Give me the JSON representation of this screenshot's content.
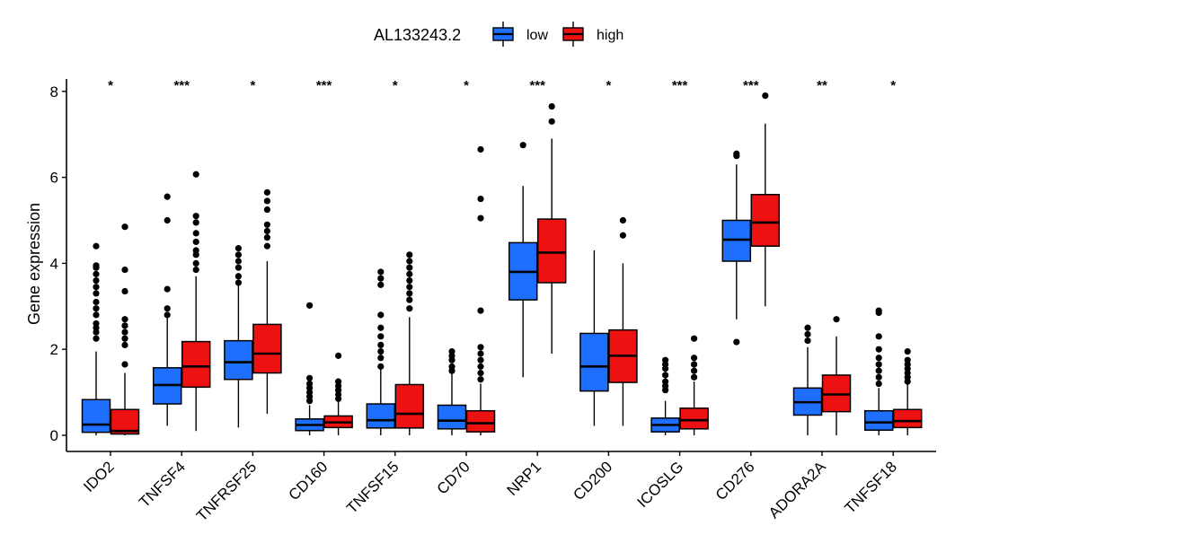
{
  "chart_data": {
    "type": "box",
    "title": "",
    "xlabel": "",
    "ylabel": "Gene expression",
    "ylim": [
      -0.35,
      8.3
    ],
    "yticks": [
      0,
      2,
      4,
      6,
      8
    ],
    "grid": false,
    "legend": {
      "title": "AL133243.2",
      "position": "top",
      "entries": [
        "low",
        "high"
      ]
    },
    "colors": {
      "low": "#1f6fff",
      "high": "#ee1111"
    },
    "categories": [
      "IDO2",
      "TNFSF4",
      "TNFRSF25",
      "CD160",
      "TNFSF15",
      "CD70",
      "NRP1",
      "CD200",
      "ICOSLG",
      "CD276",
      "ADORA2A",
      "TNFSF18"
    ],
    "significance": [
      "*",
      "***",
      "*",
      "***",
      "*",
      "*",
      "***",
      "*",
      "***",
      "***",
      "**",
      "*"
    ],
    "series": [
      {
        "name": "low",
        "boxes": [
          {
            "whisker_low": 0.0,
            "q1": 0.07,
            "median": 0.25,
            "q3": 0.83,
            "whisker_high": 1.95,
            "outliers": [
              2.25,
              2.4,
              2.5,
              2.6,
              2.8,
              2.95,
              3.1,
              3.3,
              3.45,
              3.6,
              3.75,
              3.9,
              3.95,
              4.4
            ]
          },
          {
            "whisker_low": 0.22,
            "q1": 0.73,
            "median": 1.17,
            "q3": 1.57,
            "whisker_high": 2.75,
            "outliers": [
              2.8,
              2.95,
              3.4,
              5.0,
              5.55
            ]
          },
          {
            "whisker_low": 0.18,
            "q1": 1.3,
            "median": 1.7,
            "q3": 2.2,
            "whisker_high": 3.5,
            "outliers": [
              3.55,
              3.7,
              3.9,
              4.05,
              4.2,
              4.35
            ]
          },
          {
            "whisker_low": 0.0,
            "q1": 0.11,
            "median": 0.24,
            "q3": 0.38,
            "whisker_high": 0.7,
            "outliers": [
              0.8,
              0.9,
              1.0,
              1.1,
              1.2,
              1.33,
              3.02
            ]
          },
          {
            "whisker_low": 0.0,
            "q1": 0.17,
            "median": 0.35,
            "q3": 0.73,
            "whisker_high": 1.55,
            "outliers": [
              1.6,
              1.8,
              1.95,
              2.1,
              2.3,
              2.5,
              2.8,
              3.5,
              3.65,
              3.8
            ]
          },
          {
            "whisker_low": 0.0,
            "q1": 0.15,
            "median": 0.34,
            "q3": 0.7,
            "whisker_high": 1.45,
            "outliers": [
              1.5,
              1.6,
              1.75,
              1.85,
              1.95
            ]
          },
          {
            "whisker_low": 1.35,
            "q1": 3.15,
            "median": 3.8,
            "q3": 4.48,
            "whisker_high": 5.8,
            "outliers": [
              6.75
            ]
          },
          {
            "whisker_low": 0.22,
            "q1": 1.03,
            "median": 1.6,
            "q3": 2.37,
            "whisker_high": 4.3,
            "outliers": []
          },
          {
            "whisker_low": 0.0,
            "q1": 0.08,
            "median": 0.24,
            "q3": 0.4,
            "whisker_high": 0.8,
            "outliers": [
              1.05,
              1.15,
              1.25,
              1.4,
              1.55,
              1.65,
              1.75
            ]
          },
          {
            "whisker_low": 2.7,
            "q1": 4.05,
            "median": 4.55,
            "q3": 5.0,
            "whisker_high": 6.3,
            "outliers": [
              2.17,
              6.5,
              6.55
            ]
          },
          {
            "whisker_low": 0.0,
            "q1": 0.47,
            "median": 0.77,
            "q3": 1.1,
            "whisker_high": 2.05,
            "outliers": [
              2.2,
              2.35,
              2.5
            ]
          },
          {
            "whisker_low": 0.0,
            "q1": 0.12,
            "median": 0.3,
            "q3": 0.57,
            "whisker_high": 1.1,
            "outliers": [
              1.2,
              1.35,
              1.5,
              1.65,
              1.8,
              2.0,
              2.3,
              2.85,
              2.9
            ]
          }
        ]
      },
      {
        "name": "high",
        "boxes": [
          {
            "whisker_low": 0.0,
            "q1": 0.03,
            "median": 0.1,
            "q3": 0.6,
            "whisker_high": 1.45,
            "outliers": [
              1.65,
              2.1,
              2.25,
              2.4,
              2.55,
              2.7,
              3.35,
              3.85,
              4.85
            ]
          },
          {
            "whisker_low": 0.1,
            "q1": 1.12,
            "median": 1.6,
            "q3": 2.18,
            "whisker_high": 3.7,
            "outliers": [
              3.85,
              4.0,
              4.2,
              4.3,
              4.5,
              4.7,
              4.95,
              5.1,
              6.07
            ]
          },
          {
            "whisker_low": 0.5,
            "q1": 1.45,
            "median": 1.9,
            "q3": 2.58,
            "whisker_high": 4.05,
            "outliers": [
              4.4,
              4.6,
              4.75,
              4.9,
              5.25,
              5.45,
              5.65
            ]
          },
          {
            "whisker_low": 0.0,
            "q1": 0.18,
            "median": 0.3,
            "q3": 0.45,
            "whisker_high": 0.8,
            "outliers": [
              0.85,
              0.95,
              1.05,
              1.15,
              1.25,
              1.85
            ]
          },
          {
            "whisker_low": 0.0,
            "q1": 0.17,
            "median": 0.5,
            "q3": 1.18,
            "whisker_high": 2.75,
            "outliers": [
              2.95,
              3.15,
              3.3,
              3.45,
              3.6,
              3.75,
              3.9,
              4.05,
              4.2
            ]
          },
          {
            "whisker_low": 0.0,
            "q1": 0.08,
            "median": 0.28,
            "q3": 0.57,
            "whisker_high": 1.2,
            "outliers": [
              1.3,
              1.45,
              1.6,
              1.75,
              1.9,
              2.05,
              2.9,
              5.05,
              5.5,
              6.65
            ]
          },
          {
            "whisker_low": 1.9,
            "q1": 3.55,
            "median": 4.25,
            "q3": 5.03,
            "whisker_high": 6.9,
            "outliers": [
              7.3,
              7.65
            ]
          },
          {
            "whisker_low": 0.22,
            "q1": 1.23,
            "median": 1.85,
            "q3": 2.45,
            "whisker_high": 4.0,
            "outliers": [
              4.65,
              5.0
            ]
          },
          {
            "whisker_low": 0.0,
            "q1": 0.15,
            "median": 0.35,
            "q3": 0.63,
            "whisker_high": 1.25,
            "outliers": [
              1.35,
              1.5,
              1.65,
              1.8,
              2.25
            ]
          },
          {
            "whisker_low": 3.0,
            "q1": 4.4,
            "median": 4.95,
            "q3": 5.6,
            "whisker_high": 7.25,
            "outliers": [
              7.9
            ]
          },
          {
            "whisker_low": 0.0,
            "q1": 0.55,
            "median": 0.95,
            "q3": 1.4,
            "whisker_high": 2.3,
            "outliers": [
              2.7
            ]
          },
          {
            "whisker_low": 0.0,
            "q1": 0.18,
            "median": 0.33,
            "q3": 0.6,
            "whisker_high": 1.2,
            "outliers": [
              1.25,
              1.35,
              1.45,
              1.55,
              1.65,
              1.75,
              1.95
            ]
          }
        ]
      }
    ]
  }
}
